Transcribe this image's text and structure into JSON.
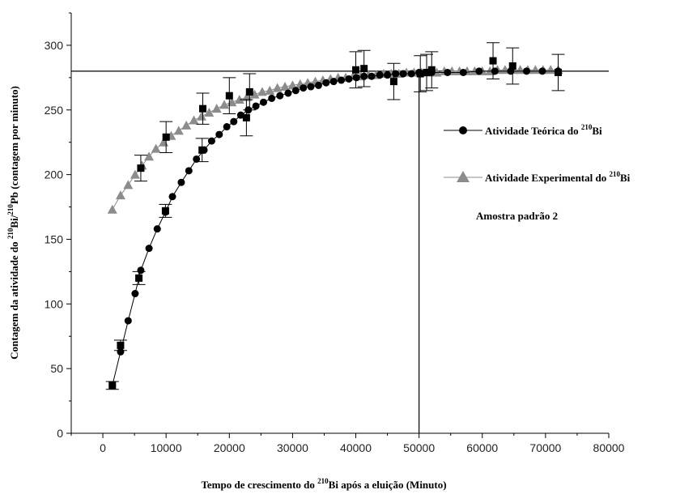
{
  "chart_data": {
    "type": "scatter",
    "title": "",
    "xlabel": {
      "prefix": "Tempo de crescimento do ",
      "sup": "210",
      "suffix": "Bi após a eluição (Minuto)"
    },
    "ylabel": {
      "prefix": "Contagem da atividade do ",
      "sup1": "210",
      "mid": "Bi/",
      "sup2": "210",
      "suffix": "Pb (contagem por minuto)"
    },
    "xlim": [
      -5000,
      80000
    ],
    "ylim": [
      0,
      325
    ],
    "x_ticks": [
      "0",
      "10000",
      "20000",
      "30000",
      "40000",
      "50000",
      "60000",
      "70000",
      "80000"
    ],
    "y_ticks": [
      "0",
      "50",
      "100",
      "150",
      "200",
      "250",
      "300"
    ],
    "reference_lines": {
      "horizontal_y": 280,
      "vertical_x": 50000
    },
    "legend": {
      "placement": "right",
      "entries": [
        {
          "prefix": "Atividade Teórica do ",
          "sup": "210",
          "suffix": "Bi",
          "marker": "circle",
          "color": "#000000"
        },
        {
          "prefix": "Atividade Experimental do ",
          "sup": "210",
          "suffix": "Bi",
          "marker": "triangle",
          "color": "#8c8c8c"
        }
      ]
    },
    "annotation": "Amostra  padrão 2",
    "series": [
      {
        "name": "Atividade Teórica do 210Bi",
        "marker": "circle",
        "color": "#000000",
        "x": [
          1500,
          2800,
          4000,
          5100,
          6000,
          7300,
          8600,
          9900,
          11000,
          12400,
          13600,
          14800,
          16000,
          17200,
          18400,
          19600,
          20700,
          21800,
          23000,
          24200,
          25400,
          26700,
          28000,
          29300,
          30500,
          31700,
          32900,
          34100,
          35300,
          36500,
          37700,
          38900,
          40100,
          41300,
          42500,
          43800,
          45000,
          46300,
          47500,
          48800,
          50000,
          52000,
          54500,
          57000,
          59500,
          62000,
          64500,
          67000,
          69500,
          72000
        ],
        "y": [
          37,
          63,
          87,
          108,
          126,
          143,
          158,
          171,
          183,
          194,
          203,
          212,
          219,
          226,
          231,
          237,
          241,
          246,
          250,
          253,
          256,
          259,
          261,
          263,
          265,
          267,
          268,
          269,
          271,
          272,
          273,
          274,
          275,
          276,
          276,
          277,
          277,
          278,
          278,
          278,
          279,
          279,
          279,
          279,
          280,
          280,
          280,
          280,
          280,
          280
        ]
      },
      {
        "name": "Atividade Experimental do 210Bi",
        "marker": "triangle",
        "color": "#8c8c8c",
        "x": [
          1500,
          2800,
          4000,
          5100,
          6200,
          7300,
          8400,
          9600,
          10800,
          12000,
          13200,
          14400,
          15600,
          16800,
          18000,
          19200,
          20400,
          21600,
          22800,
          24000,
          25200,
          26400,
          27600,
          28800,
          30000,
          31200,
          32400,
          33600,
          34800,
          36000,
          37200,
          38400,
          39600,
          40800,
          42000,
          43200,
          44400,
          45600,
          46800,
          48000,
          49200,
          50400,
          51600,
          52800,
          54000,
          55200,
          56400,
          57600,
          58800,
          60000,
          61200,
          62400,
          63600,
          64800,
          66000,
          67200,
          68400,
          69600,
          70800,
          72000
        ],
        "y": [
          173,
          184,
          192,
          200,
          207,
          214,
          220,
          225,
          230,
          234,
          238,
          242,
          245,
          248,
          251,
          254,
          256,
          258,
          260,
          262,
          264,
          265,
          267,
          268,
          269,
          270,
          271,
          272,
          273,
          274,
          275,
          275,
          276,
          276,
          277,
          277,
          278,
          278,
          278,
          279,
          279,
          279,
          279,
          279,
          280,
          280,
          280,
          280,
          280,
          280,
          280,
          281,
          281,
          281,
          281,
          281,
          281,
          281,
          281,
          281
        ]
      },
      {
        "name": "",
        "marker": "square",
        "color": "#000000",
        "x": [
          1500,
          2800,
          5700,
          6000,
          9900,
          10000,
          15700,
          15800,
          20000,
          22700,
          23200,
          40000,
          41300,
          46000,
          50200,
          51200,
          52000,
          61700,
          64800,
          72000
        ],
        "y": [
          37,
          68,
          120,
          205,
          172,
          229,
          219,
          251,
          261,
          244,
          264,
          281,
          282,
          272,
          278,
          279,
          281,
          288,
          284,
          279
        ],
        "error": [
          3,
          4,
          5,
          10,
          5,
          12,
          9,
          12,
          14,
          14,
          14,
          14,
          14,
          14,
          14,
          14,
          14,
          14,
          14,
          14
        ]
      }
    ]
  }
}
